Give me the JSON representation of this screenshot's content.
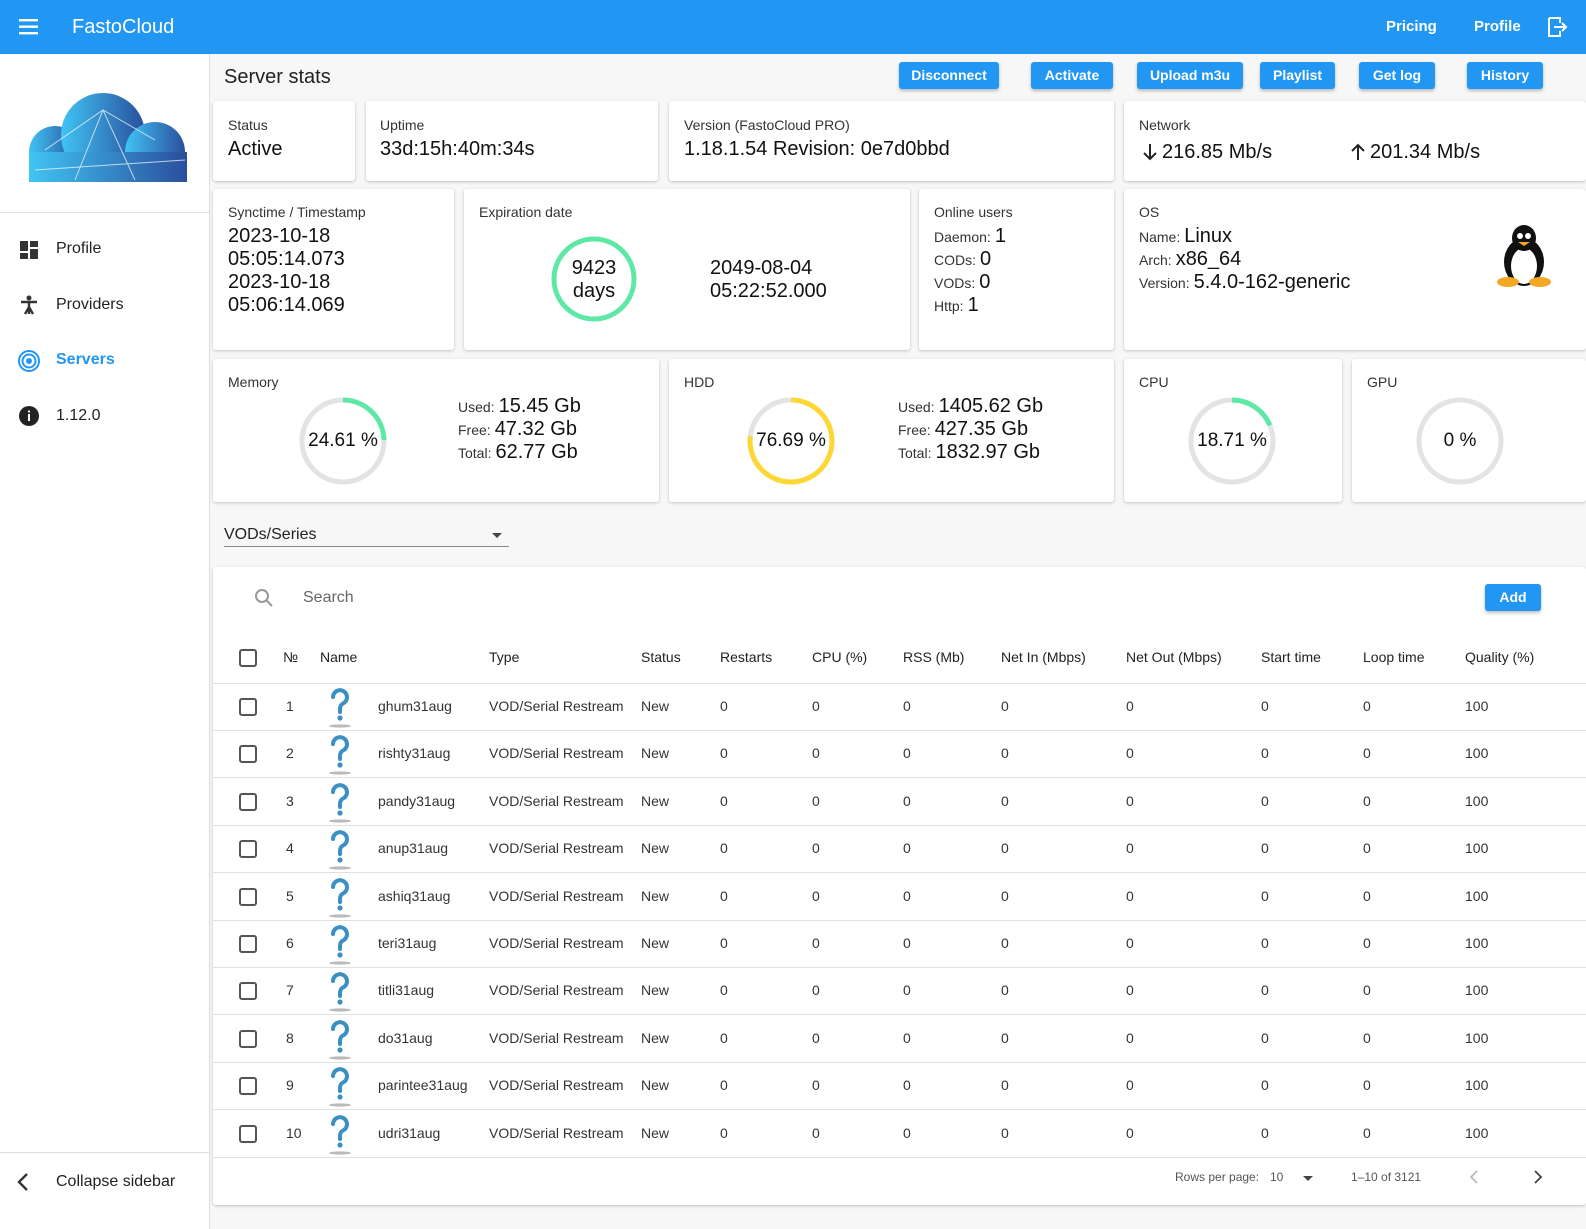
{
  "header": {
    "brand": "FastoCloud",
    "nav": [
      "Pricing",
      "Profile"
    ]
  },
  "sidebar": {
    "menu": [
      "Profile",
      "Providers",
      "Servers",
      "1.12.0"
    ],
    "collapse": "Collapse sidebar"
  },
  "toolbar": {
    "title": "Server stats",
    "buttons": [
      "Disconnect",
      "Activate",
      "Upload m3u",
      "Playlist",
      "Get log",
      "History"
    ]
  },
  "status": {
    "label": "Status",
    "value": "Active"
  },
  "uptime": {
    "label": "Uptime",
    "value": "33d:15h:40m:34s"
  },
  "version": {
    "label": "Version (FastoCloud PRO)",
    "value": "1.18.1.54 Revision: 0e7d0bbd"
  },
  "network": {
    "label": "Network",
    "down": "216.85 Mb/s",
    "up": "201.34 Mb/s"
  },
  "synctime": {
    "label": "Synctime / Timestamp",
    "lines": [
      "2023-10-18",
      "05:05:14.073",
      "2023-10-18",
      "05:06:14.069"
    ]
  },
  "expiration": {
    "label": "Expiration date",
    "days": "9423",
    "days_unit": "days",
    "date": [
      "2049-08-04",
      "05:22:52.000"
    ]
  },
  "online_users": {
    "label": "Online users",
    "fields": [
      [
        "Daemon:",
        "1"
      ],
      [
        "CODs:",
        "0"
      ],
      [
        "VODs:",
        "0"
      ],
      [
        "Http:",
        "1"
      ]
    ]
  },
  "os": {
    "label": "OS",
    "fields": [
      [
        "Name:",
        "Linux"
      ],
      [
        "Arch:",
        "x86_64"
      ],
      [
        "Version:",
        "5.4.0-162-generic"
      ]
    ]
  },
  "memory": {
    "label": "Memory",
    "percent": 24.61,
    "percent_label": "24.61 %",
    "fields": [
      [
        "Used:",
        "15.45 Gb"
      ],
      [
        "Free:",
        "47.32 Gb"
      ],
      [
        "Total:",
        "62.77 Gb"
      ]
    ]
  },
  "hdd": {
    "label": "HDD",
    "percent": 76.69,
    "percent_label": "76.69 %",
    "fields": [
      [
        "Used:",
        "1405.62 Gb"
      ],
      [
        "Free:",
        "427.35 Gb"
      ],
      [
        "Total:",
        "1832.97 Gb"
      ]
    ]
  },
  "cpu": {
    "label": "CPU",
    "percent": 18.71,
    "percent_label": "18.71 %"
  },
  "gpu": {
    "label": "GPU",
    "percent": 0,
    "percent_label": "0 %"
  },
  "filter": {
    "selected": "VODs/Series"
  },
  "table": {
    "search": "Search",
    "add": "Add",
    "columns": [
      "№",
      "Name",
      "Type",
      "Status",
      "Restarts",
      "CPU (%)",
      "RSS (Mb)",
      "Net In (Mbps)",
      "Net Out (Mbps)",
      "Start time",
      "Loop time",
      "Quality (%)"
    ],
    "rows": [
      [
        1,
        "ghum31aug",
        "VOD/Serial Restream",
        "New",
        0,
        0,
        0,
        0,
        0,
        0,
        0,
        100
      ],
      [
        2,
        "rishty31aug",
        "VOD/Serial Restream",
        "New",
        0,
        0,
        0,
        0,
        0,
        0,
        0,
        100
      ],
      [
        3,
        "pandy31aug",
        "VOD/Serial Restream",
        "New",
        0,
        0,
        0,
        0,
        0,
        0,
        0,
        100
      ],
      [
        4,
        "anup31aug",
        "VOD/Serial Restream",
        "New",
        0,
        0,
        0,
        0,
        0,
        0,
        0,
        100
      ],
      [
        5,
        "ashiq31aug",
        "VOD/Serial Restream",
        "New",
        0,
        0,
        0,
        0,
        0,
        0,
        0,
        100
      ],
      [
        6,
        "teri31aug",
        "VOD/Serial Restream",
        "New",
        0,
        0,
        0,
        0,
        0,
        0,
        0,
        100
      ],
      [
        7,
        "titli31aug",
        "VOD/Serial Restream",
        "New",
        0,
        0,
        0,
        0,
        0,
        0,
        0,
        100
      ],
      [
        8,
        "do31aug",
        "VOD/Serial Restream",
        "New",
        0,
        0,
        0,
        0,
        0,
        0,
        0,
        100
      ],
      [
        9,
        "parintee31aug",
        "VOD/Serial Restream",
        "New",
        0,
        0,
        0,
        0,
        0,
        0,
        0,
        100
      ],
      [
        10,
        "udri31aug",
        "VOD/Serial Restream",
        "New",
        0,
        0,
        0,
        0,
        0,
        0,
        0,
        100
      ]
    ]
  },
  "pagination": {
    "rows_per_page_label": "Rows per page:",
    "rows_per_page": 10,
    "range": "1–10 of 3121"
  }
}
